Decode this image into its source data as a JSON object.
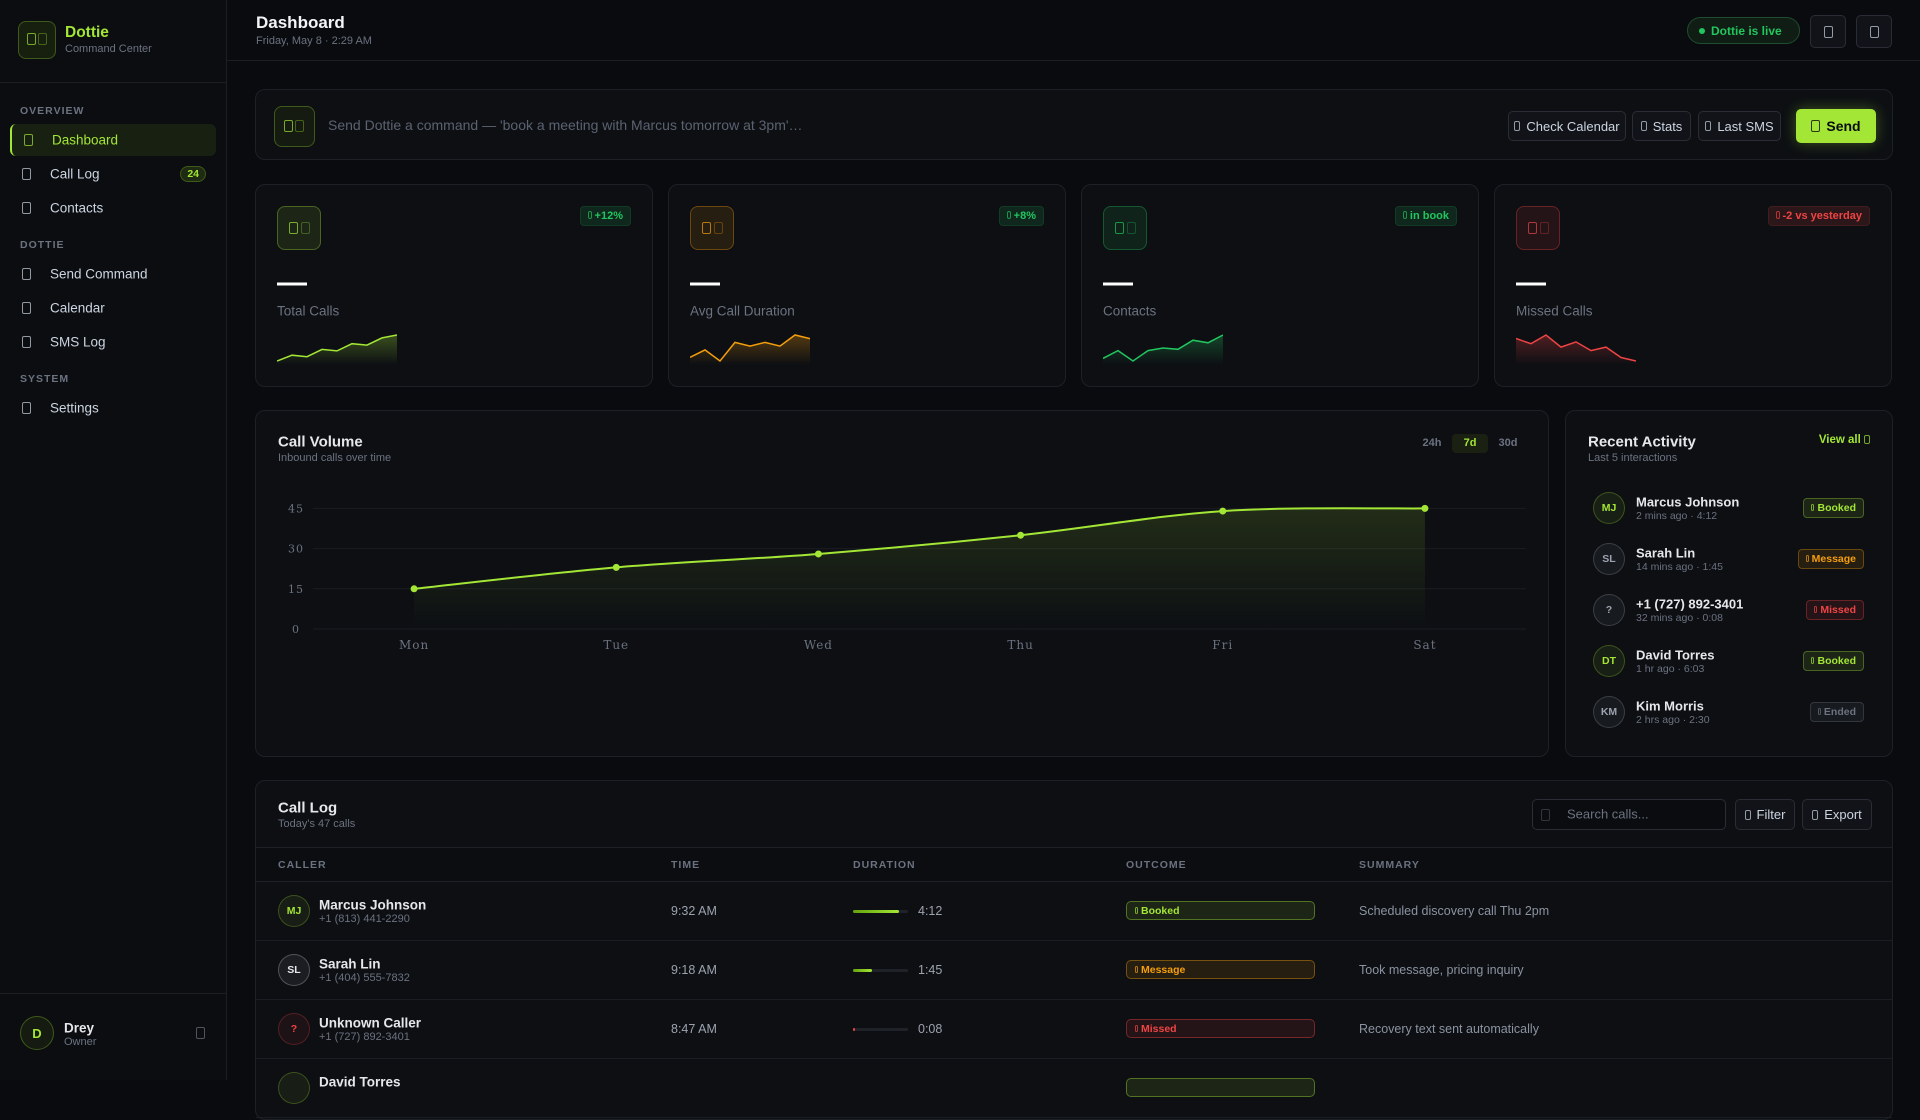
{
  "sidebar": {
    "brand": "Dottie",
    "tagline": "Command Center",
    "sections": [
      {
        "title": "OVERVIEW",
        "items": [
          {
            "label": "Dashboard",
            "active": true
          },
          {
            "label": "Call Log",
            "badge": 24
          },
          {
            "label": "Contacts"
          }
        ]
      },
      {
        "title": "DOTTIE",
        "items": [
          {
            "label": "Send Command"
          },
          {
            "label": "Calendar"
          },
          {
            "label": "SMS Log"
          }
        ]
      },
      {
        "title": "SYSTEM",
        "items": [
          {
            "label": "Settings"
          }
        ]
      }
    ],
    "user": {
      "initial": "D",
      "name": "Drey",
      "role": "Owner"
    }
  },
  "header": {
    "title": "Dashboard",
    "datetime": "Friday, May 8 · 2:29 AM",
    "status": "Dottie is live"
  },
  "command": {
    "placeholder": "Send Dottie a command — 'book a meeting with Marcus tomorrow at 3pm'…",
    "quick_actions": [
      "Check Calendar",
      "Stats",
      "Last SMS"
    ],
    "submit": "Send"
  },
  "stats": [
    {
      "value": "—",
      "label": "Total Calls",
      "change": "+12%",
      "color": "#a3e635",
      "change_color": "#22c55e",
      "trend": [
        1,
        3,
        2.5,
        5,
        4.5,
        7,
        6.5,
        9,
        10
      ]
    },
    {
      "value": "—",
      "label": "Avg Call Duration",
      "change": "+8%",
      "color": "#f59e0b",
      "change_color": "#22c55e",
      "trend": [
        5,
        6,
        4.5,
        7,
        6.5,
        7,
        6.5,
        8,
        7.5
      ]
    },
    {
      "value": "—",
      "label": "Contacts",
      "change": "in book",
      "color": "#22c55e",
      "change_color": "#22c55e",
      "trend": [
        3,
        6,
        2,
        6,
        7,
        6.5,
        10,
        9,
        12
      ]
    },
    {
      "value": "—",
      "label": "Missed Calls",
      "change": "-2 vs yesterday",
      "color": "#ef4444",
      "change_color": "#ef4444",
      "trend": [
        9,
        7.5,
        10,
        6.5,
        8,
        5.5,
        6.5,
        3.5,
        2.5
      ]
    }
  ],
  "chart_data": {
    "type": "area",
    "title": "Call Volume",
    "subtitle": "Inbound calls over time",
    "ranges": [
      "24h",
      "7d",
      "30d"
    ],
    "active_range": 1,
    "categories": [
      "Mon",
      "Tue",
      "Wed",
      "Thu",
      "Fri",
      "Sat"
    ],
    "values": [
      15,
      23,
      28,
      35,
      44,
      45
    ],
    "color": "#a3e635",
    "ylim": [
      0,
      50
    ],
    "yticks": [
      0,
      15,
      30,
      45
    ],
    "grid": true
  },
  "activity": {
    "title": "Recent Activity",
    "subtitle": "Last 5 interactions",
    "link": "View all",
    "items": [
      {
        "initials": "MJ",
        "name": "Marcus Johnson",
        "meta": "2 mins ago · 4:12",
        "status": "Booked",
        "color": "#a3e635",
        "avatar_color": "#a3e635"
      },
      {
        "initials": "SL",
        "name": "Sarah Lin",
        "meta": "14 mins ago · 1:45",
        "status": "Message",
        "color": "#f59e0b",
        "avatar_color": "#9ca3af"
      },
      {
        "initials": "?",
        "name": "+1 (727) 892-3401",
        "meta": "32 mins ago · 0:08",
        "status": "Missed",
        "color": "#ef4444",
        "avatar_color": "#9ca3af"
      },
      {
        "initials": "DT",
        "name": "David Torres",
        "meta": "1 hr ago · 6:03",
        "status": "Booked",
        "color": "#a3e635",
        "avatar_color": "#a3e635"
      },
      {
        "initials": "KM",
        "name": "Kim Morris",
        "meta": "2 hrs ago · 2:30",
        "status": "Ended",
        "color": "#6b7280",
        "avatar_color": "#9ca3af"
      }
    ]
  },
  "call_log": {
    "title": "Call Log",
    "subtitle": "Today's 47 calls",
    "search_placeholder": "Search calls...",
    "actions": [
      "Filter",
      "Export"
    ],
    "columns": [
      "CALLER",
      "TIME",
      "DURATION",
      "OUTCOME",
      "SUMMARY"
    ],
    "rows": [
      {
        "initials": "MJ",
        "caller": "Marcus Johnson",
        "phone": "+1 (813) 441-2290",
        "time": "9:32 AM",
        "duration": "4:12",
        "outcome": "Booked",
        "summary": "Scheduled discovery call Thu 2pm",
        "color": "#a3e635",
        "avatar_color": "#a3e635"
      },
      {
        "initials": "SL",
        "caller": "Sarah Lin",
        "phone": "+1 (404) 555-7832",
        "time": "9:18 AM",
        "duration": "1:45",
        "outcome": "Message",
        "summary": "Took message, pricing inquiry",
        "color": "#f59e0b",
        "avatar_color": "#e5e7eb"
      },
      {
        "initials": "?",
        "caller": "Unknown Caller",
        "phone": "+1 (727) 892-3401",
        "time": "8:47 AM",
        "duration": "0:08",
        "outcome": "Missed",
        "summary": "Recovery text sent automatically",
        "color": "#ef4444",
        "avatar_color": "#ef4444"
      },
      {
        "caller": "David Torres",
        "color": "#a3e635",
        "avatar_color": "#a3e635"
      }
    ]
  }
}
